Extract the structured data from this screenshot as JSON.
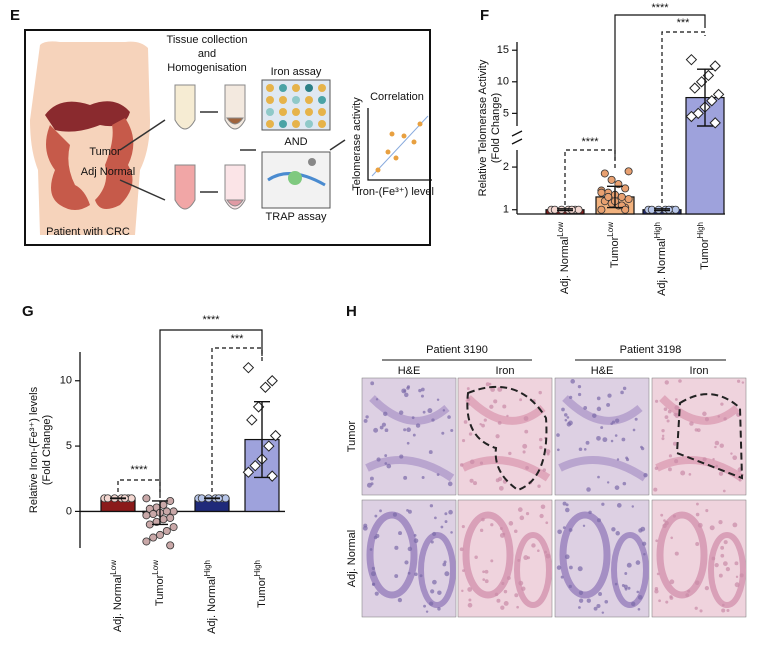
{
  "diagram": {
    "label": "E",
    "step1": [
      "Tissue collection",
      "and",
      "Homogenisation"
    ],
    "iron_assay": "Iron assay",
    "and": "AND",
    "trap_assay": "TRAP assay",
    "correlation": "Correlation",
    "corr_ylabel": "Telomerase activity",
    "corr_xlabel": "Iron-(Fe³⁺) level",
    "tumor": "Tumor",
    "adj_normal": "Adj Normal",
    "patient": "Patient with CRC"
  },
  "chart_data": [
    {
      "label": "F",
      "type": "bar",
      "ylabel": [
        "Relative Telomerase Activity",
        "(Fold Change)"
      ],
      "categories": [
        "Adj. Normal",
        "Tumor",
        "Adj. Normal",
        "Tumor"
      ],
      "category_superscripts": [
        "Low",
        "Low",
        "High",
        "High"
      ],
      "colors": [
        "#8b1a1a",
        "#f2b27e",
        "#1f2a7a",
        "#9ea2dc"
      ],
      "point_colors": [
        "#f3d6d0",
        "#e8a070",
        "#b7c6ea",
        "#ffffff"
      ],
      "markers": [
        "circle",
        "circle",
        "circle",
        "diamond"
      ],
      "values": [
        1,
        1.3,
        1,
        7.5
      ],
      "errors": [
        0.02,
        0.25,
        0.02,
        4.5
      ],
      "points": [
        [
          1,
          1,
          1,
          1,
          1,
          1,
          1
        ],
        [
          1.0,
          1.05,
          1.1,
          1.15,
          1.2,
          1.25,
          1.3,
          1.35,
          1.4,
          1.45,
          1.5,
          1.6,
          1.7,
          1.85,
          1.9,
          1.1,
          1.2,
          1.3,
          1.4,
          1.0
        ],
        [
          1,
          1,
          1,
          1,
          1,
          1,
          1
        ],
        [
          13.5,
          12.5,
          11,
          10,
          9,
          8,
          7,
          6,
          5,
          4.5,
          3.5
        ]
      ],
      "ylim": [
        0.9,
        16.3
      ],
      "ybreak": [
        2.4,
        3
      ],
      "yticks": [
        1,
        2,
        5,
        10,
        15
      ],
      "annotations": [
        "****",
        "***",
        "****"
      ]
    },
    {
      "label": "G",
      "type": "bar",
      "ylabel": [
        "Relative Iron-(Fe³⁺) levels",
        "(Fold Change)"
      ],
      "categories": [
        "Adj. Normal",
        "Tumor",
        "Adj. Normal",
        "Tumor"
      ],
      "category_superscripts": [
        "Low",
        "Low",
        "High",
        "High"
      ],
      "colors": [
        "#8b1a1a",
        "#f2b27e",
        "#1f2a7a",
        "#9ea2dc"
      ],
      "point_colors": [
        "#f3d6d0",
        "#c9a8a8",
        "#b7c6ea",
        "#ffffff"
      ],
      "markers": [
        "circle",
        "circle",
        "circle",
        "diamond"
      ],
      "values": [
        1,
        -0.1,
        1,
        5.5
      ],
      "errors": [
        0.02,
        0.9,
        0.02,
        2.9
      ],
      "points": [
        [
          1,
          1,
          1,
          1,
          1,
          1,
          1
        ],
        [
          1,
          0.8,
          0.5,
          0.3,
          0.2,
          0,
          0,
          -0.1,
          -0.2,
          -0.3,
          -0.5,
          -0.6,
          -0.8,
          -1,
          -1.2,
          -1.5,
          -1.8,
          -2,
          -2.3,
          -2.6
        ],
        [
          1,
          1,
          1,
          1,
          1,
          1,
          1
        ],
        [
          11,
          10,
          9.5,
          8,
          7,
          5.8,
          5,
          4,
          3.5,
          3,
          2.7
        ]
      ],
      "ylim": [
        -2.8,
        12.2
      ],
      "yticks": [
        0,
        5,
        10
      ],
      "annotations": [
        "****",
        "***",
        "****"
      ]
    }
  ],
  "micrographs": {
    "label": "H",
    "patients": [
      "Patient 3190",
      "Patient 3198"
    ],
    "columns": [
      "H&E",
      "Iron",
      "H&E",
      "Iron"
    ],
    "rows": [
      "Tumor",
      "Adj. Normal"
    ]
  }
}
